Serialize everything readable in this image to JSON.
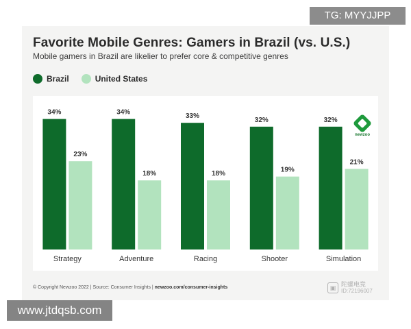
{
  "chart_data": {
    "type": "bar",
    "title": "Favorite Mobile Genres: Gamers in Brazil (vs. U.S.)",
    "subtitle": "Mobile gamers in Brazil are likelier to prefer core & competitive genres",
    "categories": [
      "Strategy",
      "Adventure",
      "Racing",
      "Shooter",
      "Simulation"
    ],
    "series": [
      {
        "name": "Brazil",
        "color": "#0e6b2b",
        "values": [
          34,
          34,
          33,
          32,
          32
        ]
      },
      {
        "name": "United States",
        "color": "#b2e3be",
        "values": [
          23,
          18,
          18,
          19,
          21
        ]
      }
    ],
    "value_suffix": "%",
    "ylim": [
      0,
      40
    ],
    "legend": "top-left",
    "grid": false
  },
  "footer": {
    "copyright": "© Copyright Newzoo 2022 | Source: Consumer Insights | ",
    "url": "newzoo.com/consumer-insights"
  },
  "logo": {
    "text": "newzoo"
  },
  "overlays": {
    "tg_badge": "TG: MYYJJPP",
    "website": "www.jtdqsb.com",
    "watermark_name": "陀螺电竞",
    "watermark_id": "ID:72196007"
  }
}
